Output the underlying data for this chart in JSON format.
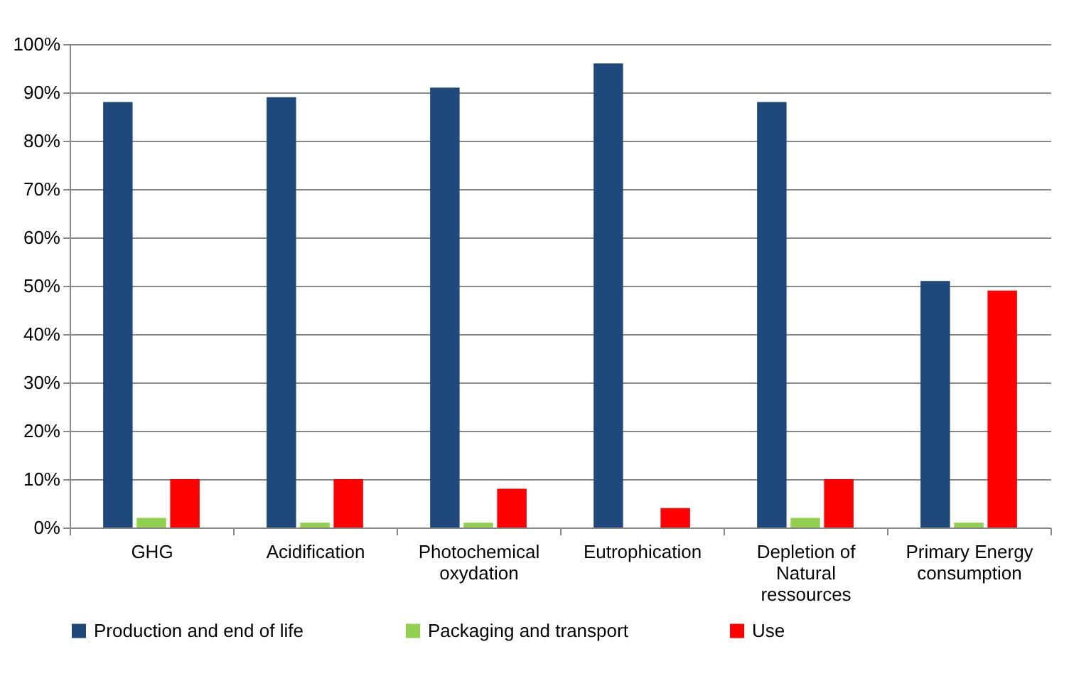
{
  "chart_data": {
    "type": "bar",
    "categories": [
      "GHG",
      "Acidification",
      "Photochemical oxydation",
      "Eutrophication",
      "Depletion of Natural ressources",
      "Primary Energy consumption"
    ],
    "series": [
      {
        "name": "Production and end of life",
        "color": "#1f497d",
        "values": [
          88,
          89,
          91,
          96,
          88,
          51
        ]
      },
      {
        "name": "Packaging and transport",
        "color": "#92d050",
        "values": [
          2,
          1,
          1,
          0,
          2,
          1
        ]
      },
      {
        "name": "Use",
        "color": "#ff0000",
        "values": [
          10,
          10,
          8,
          4,
          10,
          49
        ]
      }
    ],
    "ylim": [
      0,
      100
    ],
    "yticks": [
      {
        "value": 0,
        "label": "0%"
      },
      {
        "value": 10,
        "label": "10%"
      },
      {
        "value": 20,
        "label": "20%"
      },
      {
        "value": 30,
        "label": "30%"
      },
      {
        "value": 40,
        "label": "40%"
      },
      {
        "value": 50,
        "label": "50%"
      },
      {
        "value": 60,
        "label": "60%"
      },
      {
        "value": 70,
        "label": "70%"
      },
      {
        "value": 80,
        "label": "80%"
      },
      {
        "value": 90,
        "label": "90%"
      },
      {
        "value": 100,
        "label": "100%"
      }
    ],
    "grid": "y",
    "legend": "bottom"
  }
}
